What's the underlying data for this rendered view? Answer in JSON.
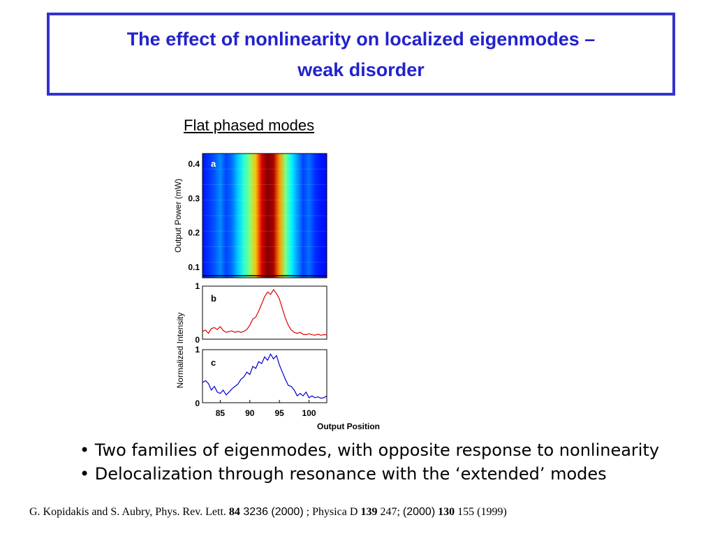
{
  "title": {
    "line1": "The effect of nonlinearity on localized eigenmodes –",
    "line2": "weak disorder"
  },
  "subtitle": "Flat phased modes",
  "bullets": [
    "• Two families of eigenmodes, with opposite response to nonlinearity",
    "• Delocalization through resonance with the ‘extended’ modes"
  ],
  "citation": {
    "part1": "G. Kopidakis and S. Aubry, Phys. Rev. Lett. ",
    "vol1": "84",
    "part2": " 3236  (2000)",
    "part3": " ; Physica D ",
    "vol2": "139",
    "part4": " 247;  ",
    "part5": "(2000)",
    "part6": " ",
    "vol3": "130",
    "part7": " 155 (1999)"
  },
  "colors": {
    "title": "#2222cc",
    "border": "#3333cc",
    "trace_b": "#dd0000",
    "trace_c": "#0000cc"
  },
  "chart_data": [
    {
      "type": "heatmap",
      "panel_label": "a",
      "xlim": [
        82,
        103
      ],
      "ylabel": "Output Power (mW)",
      "ylim": [
        0.07,
        0.43
      ],
      "yticks": [
        "0.4",
        "0.3",
        "0.2",
        "0.1"
      ],
      "ytick_values": [
        0.4,
        0.3,
        0.2,
        0.1
      ],
      "x": [
        82,
        83,
        84,
        85,
        86,
        87,
        88,
        89,
        90,
        91,
        92,
        93,
        94,
        95,
        96,
        97,
        98,
        99,
        100,
        101,
        102,
        103
      ],
      "intensity_profile": [
        0.05,
        0.08,
        0.12,
        0.18,
        0.1,
        0.15,
        0.25,
        0.35,
        0.45,
        0.65,
        0.9,
        1.0,
        0.95,
        0.7,
        0.45,
        0.3,
        0.2,
        0.1,
        0.15,
        0.08,
        0.05,
        0.04
      ]
    },
    {
      "type": "line",
      "panel_label": "b",
      "ylim": [
        0,
        1
      ],
      "yticks": [
        "1",
        "0"
      ],
      "ytick_values": [
        1,
        0
      ],
      "xlim": [
        82,
        103
      ],
      "color": "#dd0000",
      "x": [
        82,
        82.5,
        83,
        83.5,
        84,
        84.5,
        85,
        85.5,
        86,
        86.5,
        87,
        87.5,
        88,
        88.5,
        89,
        89.5,
        90,
        90.5,
        91,
        91.5,
        92,
        92.5,
        93,
        93.5,
        94,
        94.5,
        95,
        95.5,
        96,
        96.5,
        97,
        97.5,
        98,
        98.5,
        99,
        99.5,
        100,
        100.5,
        101,
        101.5,
        102,
        102.5,
        103
      ],
      "y": [
        0.12,
        0.15,
        0.08,
        0.18,
        0.2,
        0.16,
        0.22,
        0.14,
        0.1,
        0.12,
        0.13,
        0.1,
        0.12,
        0.1,
        0.12,
        0.16,
        0.25,
        0.38,
        0.42,
        0.55,
        0.7,
        0.85,
        0.95,
        0.9,
        1.0,
        0.92,
        0.8,
        0.6,
        0.4,
        0.25,
        0.15,
        0.1,
        0.08,
        0.1,
        0.06,
        0.05,
        0.07,
        0.05,
        0.04,
        0.06,
        0.04,
        0.05,
        0.05
      ]
    },
    {
      "type": "line",
      "panel_label": "c",
      "ylim": [
        0,
        1
      ],
      "yticks": [
        "1",
        "0"
      ],
      "ytick_values": [
        1,
        0
      ],
      "xlim": [
        82,
        103
      ],
      "xticks": [
        "85",
        "90",
        "95",
        "100"
      ],
      "xtick_values": [
        85,
        90,
        95,
        100
      ],
      "xlabel": "Output Position",
      "ylabel": "Normalized Intensity",
      "color": "#0000cc",
      "x": [
        82,
        82.5,
        83,
        83.5,
        84,
        84.5,
        85,
        85.5,
        86,
        86.5,
        87,
        87.5,
        88,
        88.5,
        89,
        89.5,
        90,
        90.5,
        91,
        91.5,
        92,
        92.5,
        93,
        93.5,
        94,
        94.5,
        95,
        95.5,
        96,
        96.5,
        97,
        97.5,
        98,
        98.5,
        99,
        99.5,
        100,
        100.5,
        101,
        101.5,
        102,
        102.5,
        103
      ],
      "y": [
        0.38,
        0.42,
        0.36,
        0.22,
        0.3,
        0.18,
        0.15,
        0.22,
        0.12,
        0.18,
        0.25,
        0.3,
        0.35,
        0.45,
        0.5,
        0.6,
        0.55,
        0.72,
        0.68,
        0.82,
        0.78,
        0.92,
        0.85,
        0.98,
        0.88,
        0.95,
        0.75,
        0.6,
        0.45,
        0.32,
        0.3,
        0.22,
        0.1,
        0.15,
        0.1,
        0.18,
        0.06,
        0.1,
        0.06,
        0.08,
        0.05,
        0.06,
        0.1
      ]
    }
  ]
}
